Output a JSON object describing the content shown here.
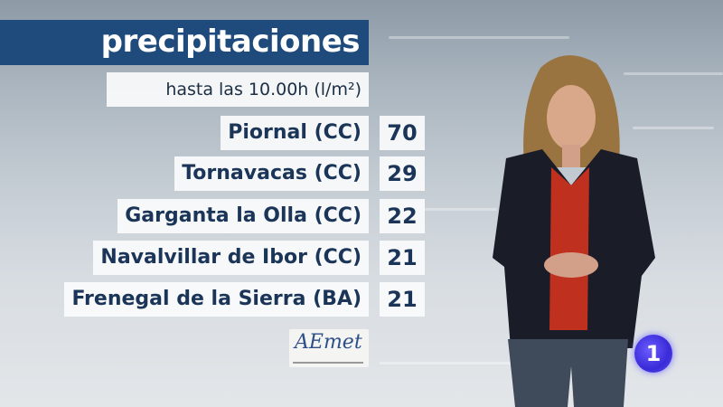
{
  "title": "precipitaciones",
  "subtitle": "hasta las 10.00h (l/m²)",
  "rows": [
    {
      "place": "Piornal (CC)",
      "value": "70"
    },
    {
      "place": "Tornavacas (CC)",
      "value": "29"
    },
    {
      "place": "Garganta la Olla (CC)",
      "value": "22"
    },
    {
      "place": "Navalvillar de Ibor (CC)",
      "value": "21"
    },
    {
      "place": "Frenegal de la Sierra (BA)",
      "value": "21"
    }
  ],
  "logos": {
    "aemet": "AEmet",
    "channel": "1"
  },
  "colors": {
    "title_bg": "#1f4a7c",
    "text": "#1b3558",
    "channel_logo": "#3a2bd8"
  }
}
